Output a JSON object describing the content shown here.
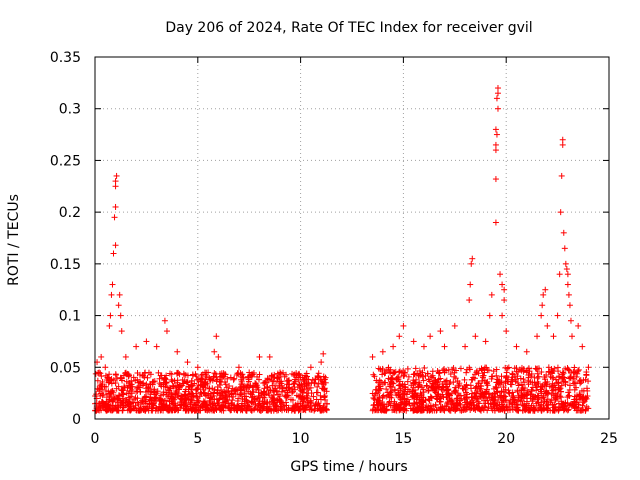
{
  "chart_data": {
    "type": "scatter",
    "title": "Day 206 of 2024, Rate Of TEC Index for receiver gvil",
    "xlabel": "GPS time / hours",
    "ylabel": "ROTI / TECUs",
    "xlim": [
      0,
      25
    ],
    "ylim": [
      0,
      0.35
    ],
    "xticks": [
      0,
      5,
      10,
      15,
      20,
      25
    ],
    "xtick_labels": [
      "0",
      "5",
      "10",
      "15",
      "20",
      "25"
    ],
    "yticks": [
      0,
      0.05,
      0.1,
      0.15,
      0.2,
      0.25,
      0.3,
      0.35
    ],
    "ytick_labels": [
      "0",
      "0.05",
      "0.1",
      "0.15",
      "0.2",
      "0.25",
      "0.3",
      "0.35"
    ],
    "grid": true,
    "marker": "+",
    "color": "#ff0000",
    "data_gap_hours": [
      11.3,
      13.5
    ],
    "series": [
      {
        "points": [
          [
            0.1,
            0.055
          ],
          [
            0.2,
            0.045
          ],
          [
            0.3,
            0.06
          ],
          [
            0.5,
            0.05
          ],
          [
            0.7,
            0.09
          ],
          [
            0.75,
            0.1
          ],
          [
            0.8,
            0.12
          ],
          [
            0.85,
            0.13
          ],
          [
            0.9,
            0.16
          ],
          [
            0.95,
            0.195
          ],
          [
            1.0,
            0.205
          ],
          [
            1.0,
            0.225
          ],
          [
            1.0,
            0.23
          ],
          [
            1.05,
            0.235
          ],
          [
            1.0,
            0.168
          ],
          [
            1.2,
            0.12
          ],
          [
            1.15,
            0.11
          ],
          [
            1.25,
            0.1
          ],
          [
            1.3,
            0.085
          ],
          [
            1.5,
            0.06
          ],
          [
            2.0,
            0.07
          ],
          [
            2.5,
            0.075
          ],
          [
            3.0,
            0.07
          ],
          [
            3.4,
            0.095
          ],
          [
            3.5,
            0.085
          ],
          [
            4.0,
            0.065
          ],
          [
            4.5,
            0.055
          ],
          [
            5.0,
            0.05
          ],
          [
            5.5,
            0.045
          ],
          [
            5.8,
            0.065
          ],
          [
            5.9,
            0.08
          ],
          [
            6.0,
            0.06
          ],
          [
            7.0,
            0.05
          ],
          [
            7.5,
            0.045
          ],
          [
            8.0,
            0.06
          ],
          [
            8.5,
            0.06
          ],
          [
            9.0,
            0.045
          ],
          [
            10.0,
            0.04
          ],
          [
            10.5,
            0.05
          ],
          [
            11.0,
            0.055
          ],
          [
            11.1,
            0.063
          ],
          [
            13.5,
            0.06
          ],
          [
            14.0,
            0.065
          ],
          [
            14.5,
            0.07
          ],
          [
            14.8,
            0.08
          ],
          [
            15.0,
            0.09
          ],
          [
            15.5,
            0.075
          ],
          [
            16.0,
            0.07
          ],
          [
            16.3,
            0.08
          ],
          [
            16.8,
            0.085
          ],
          [
            17.0,
            0.07
          ],
          [
            17.5,
            0.09
          ],
          [
            18.0,
            0.07
          ],
          [
            18.2,
            0.115
          ],
          [
            18.25,
            0.13
          ],
          [
            18.3,
            0.15
          ],
          [
            18.35,
            0.155
          ],
          [
            18.5,
            0.08
          ],
          [
            19.0,
            0.075
          ],
          [
            19.2,
            0.1
          ],
          [
            19.3,
            0.12
          ],
          [
            19.5,
            0.26
          ],
          [
            19.5,
            0.265
          ],
          [
            19.55,
            0.275
          ],
          [
            19.5,
            0.28
          ],
          [
            19.6,
            0.3
          ],
          [
            19.55,
            0.31
          ],
          [
            19.6,
            0.315
          ],
          [
            19.6,
            0.32
          ],
          [
            19.5,
            0.232
          ],
          [
            19.5,
            0.19
          ],
          [
            19.7,
            0.14
          ],
          [
            19.8,
            0.13
          ],
          [
            19.9,
            0.125
          ],
          [
            19.9,
            0.115
          ],
          [
            19.8,
            0.1
          ],
          [
            20.0,
            0.085
          ],
          [
            20.5,
            0.07
          ],
          [
            21.0,
            0.065
          ],
          [
            21.5,
            0.08
          ],
          [
            21.7,
            0.1
          ],
          [
            21.75,
            0.11
          ],
          [
            21.8,
            0.12
          ],
          [
            21.9,
            0.125
          ],
          [
            22.0,
            0.09
          ],
          [
            22.3,
            0.08
          ],
          [
            22.5,
            0.1
          ],
          [
            22.6,
            0.14
          ],
          [
            22.65,
            0.2
          ],
          [
            22.7,
            0.235
          ],
          [
            22.75,
            0.265
          ],
          [
            22.75,
            0.27
          ],
          [
            22.8,
            0.18
          ],
          [
            22.85,
            0.165
          ],
          [
            22.9,
            0.15
          ],
          [
            22.95,
            0.145
          ],
          [
            23.0,
            0.14
          ],
          [
            23.0,
            0.13
          ],
          [
            23.05,
            0.12
          ],
          [
            23.1,
            0.11
          ],
          [
            23.15,
            0.095
          ],
          [
            23.2,
            0.08
          ],
          [
            23.5,
            0.09
          ],
          [
            23.7,
            0.07
          ],
          [
            24.0,
            0.05
          ]
        ],
        "bands": [
          {
            "x": [
              0.0,
              11.3
            ],
            "y": [
              0.0,
              0.045
            ]
          },
          {
            "x": [
              13.5,
              24.0
            ],
            "y": [
              0.0,
              0.05
            ]
          }
        ]
      }
    ]
  }
}
